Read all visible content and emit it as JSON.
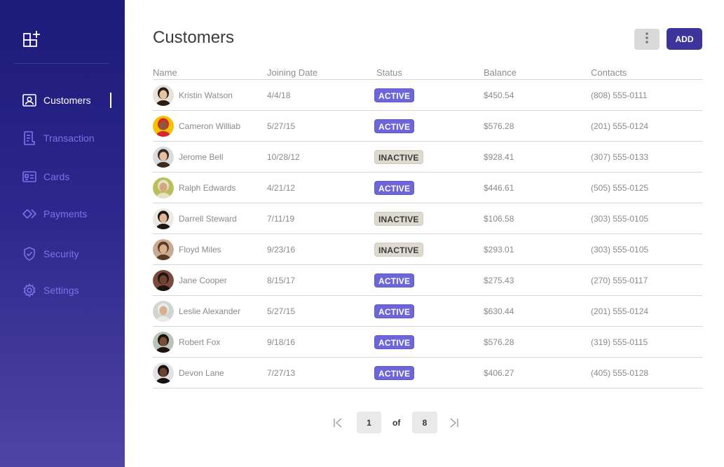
{
  "sidebar": {
    "logo_icon": "dashboard-add-icon",
    "items": [
      {
        "label": "Customers",
        "icon": "customer-card-icon",
        "active": true
      },
      {
        "label": "Transaction",
        "icon": "document-icon",
        "active": false
      },
      {
        "label": "Cards",
        "icon": "id-card-icon",
        "active": false
      },
      {
        "label": "Payments",
        "icon": "diamond-arrows-icon",
        "active": false
      },
      {
        "label": "Security",
        "icon": "shield-icon",
        "active": false
      },
      {
        "label": "Settings",
        "icon": "gear-icon",
        "active": false
      }
    ]
  },
  "header": {
    "title": "Customers",
    "more_icon": "vertical-dots-icon",
    "add_label": "ADD"
  },
  "table": {
    "columns": [
      "Name",
      "Joining Date",
      "Status",
      "Balance",
      "Contacts"
    ],
    "rows": [
      {
        "name": "Kristin Watson",
        "date": "4/4/18",
        "status": "ACTIVE",
        "balance": "$450.54",
        "contact": "(808) 555-0111"
      },
      {
        "name": "Cameron Williab",
        "date": "5/27/15",
        "status": "ACTIVE",
        "balance": "$576.28",
        "contact": "(201) 555-0124"
      },
      {
        "name": "Jerome Bell",
        "date": "10/28/12",
        "status": "INACTIVE",
        "balance": "$928.41",
        "contact": "(307) 555-0133"
      },
      {
        "name": "Ralph Edwards",
        "date": "4/21/12",
        "status": "ACTIVE",
        "balance": "$446.61",
        "contact": "(505) 555-0125"
      },
      {
        "name": "Darrell Steward",
        "date": "7/11/19",
        "status": "INACTIVE",
        "balance": "$106.58",
        "contact": "(303) 555-0105"
      },
      {
        "name": "Floyd Miles",
        "date": "9/23/16",
        "status": "INACTIVE",
        "balance": "$293.01",
        "contact": "(303) 555-0105"
      },
      {
        "name": "Jane Cooper",
        "date": "8/15/17",
        "status": "ACTIVE",
        "balance": "$275.43",
        "contact": "(270) 555-0117"
      },
      {
        "name": "Leslie Alexander",
        "date": "5/27/15",
        "status": "ACTIVE",
        "balance": "$630.44",
        "contact": "(201) 555-0124"
      },
      {
        "name": "Robert Fox",
        "date": "9/18/16",
        "status": "ACTIVE",
        "balance": "$576.28",
        "contact": "(319) 555-0115"
      },
      {
        "name": "Devon Lane",
        "date": "7/27/13",
        "status": "ACTIVE",
        "balance": "$406.27",
        "contact": "(405) 555-0128"
      }
    ]
  },
  "pagination": {
    "current": "1",
    "of_label": "of",
    "total": "8",
    "first_icon": "first-page-icon",
    "last_icon": "last-page-icon"
  },
  "colors": {
    "accent": "#3d349c",
    "active_badge": "#6d66d6",
    "inactive_badge": "#dedad0",
    "nav_text": "#7b72ea",
    "sidebar_top": "#1c1a7a",
    "sidebar_bottom": "#4e45a5"
  },
  "avatar_colors": [
    {
      "bg": "#e8e2d8",
      "skin": "#e9c2a0",
      "hair": "#2b1d14"
    },
    {
      "bg": "#f2c300",
      "skin": "#8a5a3c",
      "hair": "#d8262e"
    },
    {
      "bg": "#d8dcdc",
      "skin": "#e3bfa1",
      "hair": "#3b2a22"
    },
    {
      "bg": "#b9c05a",
      "skin": "#d6a582",
      "hair": "#e8e0c6"
    },
    {
      "bg": "#ece9e4",
      "skin": "#e2b595",
      "hair": "#1e1814"
    },
    {
      "bg": "#c9ab95",
      "skin": "#d9ae8c",
      "hair": "#5a3b28"
    },
    {
      "bg": "#7b4a3a",
      "skin": "#6e4330",
      "hair": "#1c1410"
    },
    {
      "bg": "#cfd7d0",
      "skin": "#d7b092",
      "hair": "#e9ece6"
    },
    {
      "bg": "#b8c4b6",
      "skin": "#7a4e35",
      "hair": "#1a1410"
    },
    {
      "bg": "#dfe3e6",
      "skin": "#6b432f",
      "hair": "#171210"
    }
  ]
}
